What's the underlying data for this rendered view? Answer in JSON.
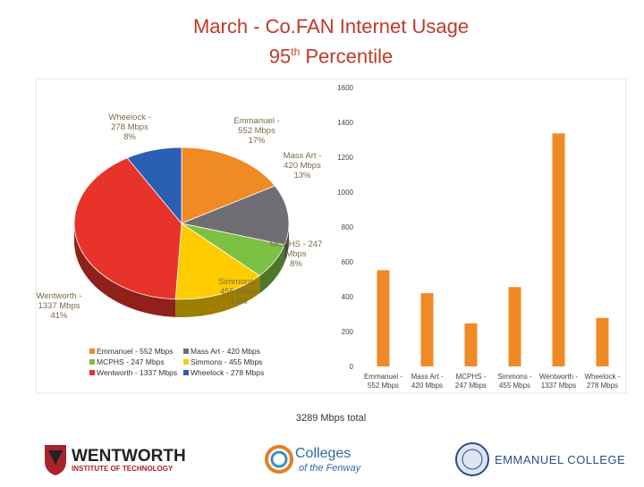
{
  "header": {
    "title_line1": "March - Co.FAN Internet Usage",
    "title_line2_num": "95",
    "title_line2_sup": "th",
    "title_line2_rest": " Percentile"
  },
  "chart_data": [
    {
      "type": "pie",
      "slices": [
        {
          "name": "Emmanuel - 552 Mbps",
          "value": 552,
          "pct": "17%",
          "label": [
            "Emmanuel -",
            "552 Mbps",
            "17%"
          ],
          "color": "#f08a24"
        },
        {
          "name": "Mass Art - 420 Mbps",
          "value": 420,
          "pct": "13%",
          "label": [
            "Mass Art -",
            "420 Mbps",
            "13%"
          ],
          "color": "#6e6e73"
        },
        {
          "name": "MCPHS - 247 Mbps",
          "value": 247,
          "pct": "8%",
          "label": [
            "MCPHS - 247",
            "Mbps",
            "8%"
          ],
          "color": "#7dc142"
        },
        {
          "name": "Simmons - 455 Mbps",
          "value": 455,
          "pct": "14%",
          "label": [
            "Simmons -",
            "455 Mbps",
            "14%"
          ],
          "color": "#ffcc00"
        },
        {
          "name": "Wentworth - 1337 Mbps",
          "value": 1337,
          "pct": "41%",
          "label": [
            "Wentworth -",
            "1337 Mbps",
            "41%"
          ],
          "color": "#e8332a"
        },
        {
          "name": "Wheelock - 278 Mbps",
          "value": 278,
          "pct": "8%",
          "label": [
            "Wheelock -",
            "278 Mbps",
            "8%"
          ],
          "color": "#2b5fb4"
        }
      ],
      "legend": [
        "Emmanuel - 552 Mbps",
        "Mass Art - 420 Mbps",
        "MCPHS - 247 Mbps",
        "Simmons - 455 Mbps",
        "Wentworth - 1337 Mbps",
        "Wheelock - 278 Mbps"
      ]
    },
    {
      "type": "bar",
      "categories": [
        [
          "Emmanuel -",
          "552 Mbps"
        ],
        [
          "Mass Art -",
          "420 Mbps"
        ],
        [
          "MCPHS -",
          "247 Mbps"
        ],
        [
          "Simmons -",
          "455 Mbps"
        ],
        [
          "Wentworth -",
          "1337 Mbps"
        ],
        [
          "Wheelock -",
          "278 Mbps"
        ]
      ],
      "values": [
        552,
        420,
        247,
        455,
        1337,
        278
      ],
      "ylim": [
        0,
        1600
      ],
      "yticks": [
        "0",
        "200",
        "400",
        "600",
        "800",
        "1000",
        "1200",
        "1400",
        "1600"
      ],
      "bar_color": "#f08a24",
      "grid": false
    }
  ],
  "total_text": "3289 Mbps total",
  "logos": {
    "wentworth_name": "WENTWORTH",
    "wentworth_sub": "INSTITUTE OF TECHNOLOGY",
    "colleges_line1": "Colleges",
    "colleges_line2": "of the Fenway",
    "emmanuel_name": "EMMANUEL COLLEGE"
  }
}
